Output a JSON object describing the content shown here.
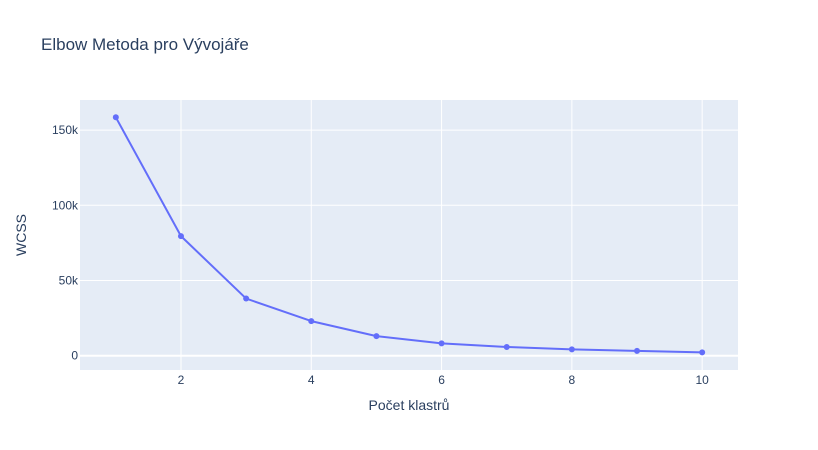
{
  "chart_data": {
    "type": "line",
    "title": "Elbow Metoda pro Vývojáře",
    "xlabel": "Počet klastrů",
    "ylabel": "WCSS",
    "x": [
      1,
      2,
      3,
      4,
      5,
      6,
      7,
      8,
      9,
      10
    ],
    "series": [
      {
        "values": [
          158500,
          79500,
          38000,
          23000,
          13000,
          8200,
          5800,
          4200,
          3200,
          2200
        ]
      }
    ],
    "xlim": [
      0.45,
      10.55
    ],
    "ylim": [
      -9500,
      170000
    ],
    "xticks": [
      2,
      4,
      6,
      8,
      10
    ],
    "xtick_labels": [
      "2",
      "4",
      "6",
      "8",
      "10"
    ],
    "yticks": [
      0,
      50000,
      100000,
      150000
    ],
    "ytick_labels": [
      "0",
      "50k",
      "100k",
      "150k"
    ],
    "grid": true,
    "colors": {
      "line": "#636efa",
      "plot_bg": "#e5ecf6",
      "grid": "#ffffff",
      "text": "#2a3f5f"
    }
  }
}
